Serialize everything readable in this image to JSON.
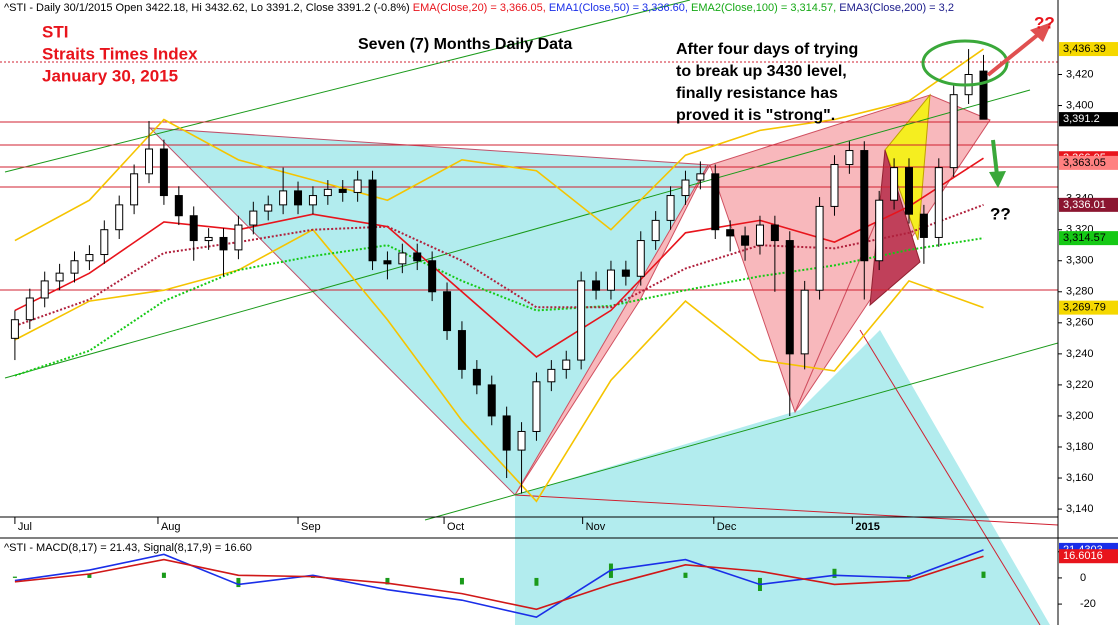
{
  "chart_data": [
    {
      "type": "candlestick",
      "header": [
        "^STI - Daily 30/1/2015 Open 3422.18, Hi 3432.62, Lo 3391.2, Close 3391.2 (-0.8%)",
        "EMA(Close,20) = 3,366.05,",
        "EMA1(Close,50) = 3,336.60,",
        "EMA2(Close,100) = 3,314.57,",
        "EMA3(Close,200) = 3,2"
      ],
      "annotations": [
        "STI",
        "Straits Times Index",
        "January 30, 2015",
        "Seven (7) Months Daily Data"
      ],
      "note": [
        "After four days of trying",
        "to break up 3430 level,",
        "finally resistance has",
        "proved it is \"strong\"."
      ],
      "questions": [
        "??",
        "??"
      ],
      "x": [
        0,
        1,
        2,
        3,
        4,
        5,
        6,
        7,
        8,
        9,
        10,
        11,
        12,
        13,
        14,
        15,
        16,
        17,
        18,
        19,
        20,
        21,
        22,
        23,
        24,
        25,
        26,
        27,
        28,
        29,
        30,
        31,
        32,
        33,
        34,
        35,
        36,
        37,
        38,
        39,
        40,
        41,
        42,
        43,
        44,
        45,
        46,
        47,
        48,
        49,
        50,
        51,
        52,
        53,
        54,
        55,
        56,
        57,
        58,
        59,
        60,
        61,
        62,
        63,
        64,
        65
      ],
      "open": [
        3250,
        3262,
        3276,
        3287,
        3292,
        3300,
        3304,
        3320,
        3336,
        3356,
        3372,
        3342,
        3329,
        3313,
        3315,
        3307,
        3323,
        3332,
        3336,
        3345,
        3336,
        3342,
        3346,
        3344,
        3352,
        3300,
        3298,
        3305,
        3300,
        3280,
        3255,
        3230,
        3220,
        3200,
        3178,
        3190,
        3222,
        3230,
        3236,
        3287,
        3281,
        3294,
        3290,
        3313,
        3326,
        3342,
        3352,
        3356,
        3320,
        3316,
        3310,
        3323,
        3313,
        3240,
        3281,
        3335,
        3362,
        3371,
        3300,
        3339,
        3360,
        3330,
        3315,
        3360,
        3407,
        3422.18
      ],
      "high": [
        3268,
        3282,
        3293,
        3298,
        3306,
        3310,
        3326,
        3342,
        3362,
        3390,
        3378,
        3348,
        3335,
        3321,
        3321,
        3329,
        3338,
        3342,
        3360,
        3351,
        3348,
        3352,
        3352,
        3358,
        3358,
        3306,
        3311,
        3311,
        3306,
        3286,
        3261,
        3236,
        3226,
        3206,
        3196,
        3228,
        3236,
        3242,
        3293,
        3293,
        3300,
        3300,
        3319,
        3332,
        3348,
        3358,
        3364,
        3362,
        3326,
        3322,
        3329,
        3329,
        3319,
        3287,
        3341,
        3368,
        3377,
        3377,
        3345,
        3366,
        3366,
        3336,
        3366,
        3413,
        3436.39,
        3432.62
      ],
      "low": [
        3236,
        3256,
        3270,
        3281,
        3286,
        3294,
        3298,
        3314,
        3330,
        3350,
        3336,
        3323,
        3300,
        3307,
        3290,
        3301,
        3317,
        3326,
        3330,
        3330,
        3330,
        3336,
        3338,
        3338,
        3294,
        3288,
        3292,
        3294,
        3274,
        3249,
        3224,
        3214,
        3194,
        3160,
        3150,
        3184,
        3216,
        3224,
        3230,
        3275,
        3275,
        3284,
        3284,
        3307,
        3320,
        3336,
        3346,
        3314,
        3306,
        3300,
        3304,
        3280,
        3200,
        3230,
        3275,
        3329,
        3356,
        3275,
        3294,
        3333,
        3324,
        3298,
        3309,
        3354,
        3401,
        3391.2
      ],
      "close": [
        3262,
        3276,
        3287,
        3292,
        3300,
        3304,
        3320,
        3336,
        3356,
        3372,
        3342,
        3329,
        3313,
        3315,
        3307,
        3323,
        3332,
        3336,
        3345,
        3336,
        3342,
        3346,
        3344,
        3352,
        3300,
        3298,
        3305,
        3300,
        3280,
        3255,
        3230,
        3220,
        3200,
        3178,
        3190,
        3222,
        3230,
        3236,
        3287,
        3281,
        3294,
        3290,
        3313,
        3326,
        3342,
        3352,
        3356,
        3320,
        3316,
        3310,
        3323,
        3313,
        3240,
        3281,
        3335,
        3362,
        3371,
        3300,
        3339,
        3360,
        3330,
        3315,
        3360,
        3407,
        3420,
        3391.2
      ],
      "up_color": "#ffffff",
      "down_color": "#000000",
      "series": [
        {
          "color": "#f5c400",
          "style": "solid",
          "x": [
            0,
            5,
            10,
            15,
            20,
            25,
            30,
            35,
            40,
            45,
            50,
            55,
            60,
            65
          ],
          "values": [
            3313,
            3339,
            3391,
            3365,
            3352,
            3339,
            3365,
            3358,
            3320,
            3368,
            3384,
            3391,
            3403,
            3436.39
          ]
        },
        {
          "color": "#f5c400",
          "style": "solid",
          "x": [
            0,
            5,
            10,
            15,
            20,
            25,
            30,
            35,
            40,
            45,
            50,
            55,
            60,
            65
          ],
          "values": [
            3249,
            3274,
            3281,
            3294,
            3320,
            3262,
            3197,
            3145,
            3223,
            3274,
            3236,
            3229,
            3287,
            3269.79
          ]
        },
        {
          "color": "#15c915",
          "style": "dotted",
          "x": [
            0,
            5,
            10,
            15,
            20,
            25,
            30,
            35,
            40,
            45,
            50,
            55,
            60,
            65
          ],
          "values": [
            3226,
            3242,
            3274,
            3294,
            3303,
            3310,
            3287,
            3268,
            3271,
            3281,
            3290,
            3297,
            3307,
            3314.57
          ]
        },
        {
          "color": "#b0203c",
          "style": "dotted",
          "x": [
            0,
            5,
            10,
            15,
            20,
            25,
            30,
            35,
            40,
            45,
            50,
            55,
            60,
            65
          ],
          "values": [
            3258,
            3275,
            3305,
            3312,
            3320,
            3322,
            3300,
            3270,
            3270,
            3295,
            3310,
            3308,
            3318,
            3336.01
          ]
        },
        {
          "color": "#e8141c",
          "style": "solid",
          "x": [
            0,
            5,
            10,
            15,
            20,
            25,
            30,
            35,
            40,
            45,
            50,
            55,
            60,
            65
          ],
          "values": [
            3268,
            3292,
            3325,
            3320,
            3330,
            3322,
            3280,
            3238,
            3268,
            3318,
            3326,
            3312,
            3335,
            3366.05
          ]
        }
      ],
      "badges": [
        {
          "value": 3436.39,
          "label": "3,436.39",
          "color": "#f5d800",
          "text_color": "#000000"
        },
        {
          "value": 3391.2,
          "label": "3,391.2",
          "color": "#000000",
          "text_color": "#ffffff"
        },
        {
          "value": 3391.2,
          "label": "3,391.2",
          "color": "#000000",
          "text_color": "#ffffff"
        },
        {
          "value": 3366.05,
          "label": "3,366.05",
          "color": "#e8141c",
          "text_color": "#ffffff"
        },
        {
          "value": 3363.05,
          "label": "3,363.05",
          "color": "#ff8080",
          "text_color": "#000000"
        },
        {
          "value": 3336.01,
          "label": "3,336.01",
          "color": "#8b1530",
          "text_color": "#ffffff"
        },
        {
          "value": 3314.57,
          "label": "3,314.57",
          "color": "#15c915",
          "text_color": "#000000"
        },
        {
          "value": 3269.79,
          "label": "3,269.79",
          "color": "#f5d800",
          "text_color": "#000000"
        }
      ],
      "xlim": [
        -1,
        70
      ],
      "xticks": [
        {
          "value": 0,
          "label": "Jul"
        },
        {
          "value": 9.6,
          "label": "Aug"
        },
        {
          "value": 19,
          "label": "Sep"
        },
        {
          "value": 28.8,
          "label": "Oct"
        },
        {
          "value": 38.1,
          "label": "Nov"
        },
        {
          "value": 46.9,
          "label": "Dec"
        },
        {
          "value": 56.2,
          "label": "2015"
        }
      ],
      "ylim": [
        3122,
        3468
      ],
      "yticks": [
        {
          "value": 3140,
          "label": "3,140"
        },
        {
          "value": 3160,
          "label": "3,160"
        },
        {
          "value": 3180,
          "label": "3,180"
        },
        {
          "value": 3200,
          "label": "3,200"
        },
        {
          "value": 3220,
          "label": "3,220"
        },
        {
          "value": 3240,
          "label": "3,240"
        },
        {
          "value": 3260,
          "label": "3,260"
        },
        {
          "value": 3280,
          "label": "3,280"
        },
        {
          "value": 3300,
          "label": "3,300"
        },
        {
          "value": 3320,
          "label": "3,320"
        },
        {
          "value": 3340,
          "label": "3,340"
        },
        {
          "value": 3400,
          "label": "3,400"
        },
        {
          "value": 3420,
          "label": "3,420"
        }
      ]
    },
    {
      "type": "macd",
      "title": "^STI - MACD(8,17) = 21.43, Signal(8,17,9) = 16.60",
      "x": [
        0,
        5,
        10,
        15,
        20,
        25,
        30,
        35,
        40,
        45,
        50,
        55,
        60,
        65
      ],
      "series": [
        {
          "color": "#1a2ee8",
          "values": [
            -2,
            6,
            18,
            -5,
            2,
            -9,
            -17,
            -30,
            6,
            14,
            -5,
            2,
            0,
            21.4303
          ]
        },
        {
          "color": "#d01818",
          "values": [
            -3,
            3,
            14,
            2,
            1,
            -4,
            -12,
            -24,
            -5,
            10,
            5,
            -5,
            -2,
            16.6016
          ]
        }
      ],
      "histogram": {
        "color": "#1a9a1a",
        "values": [
          1,
          3,
          4,
          -7,
          1,
          -5,
          -5,
          -6,
          11,
          4,
          -10,
          7,
          2,
          4.83
        ]
      },
      "badges": [
        {
          "value": 21.4303,
          "label": "21.4303",
          "color": "#1a2ee8",
          "text_color": "#ffffff"
        },
        {
          "value": 16.6016,
          "label": "16.6016",
          "color": "#e8141c",
          "text_color": "#ffffff"
        }
      ],
      "xlim": [
        -1,
        70
      ],
      "ylim": [
        -36,
        29
      ],
      "yticks": [
        -20,
        0,
        20
      ]
    }
  ]
}
